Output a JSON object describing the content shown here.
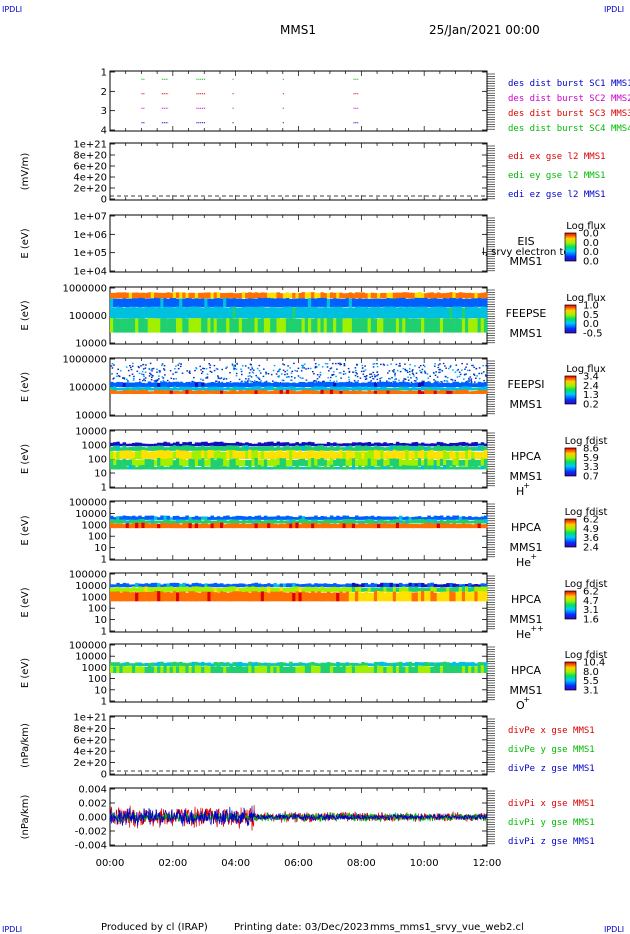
{
  "header": {
    "corner": "IPDLI",
    "spacecraft": "MMS1",
    "date": "25/Jan/2021 00:00"
  },
  "footer": {
    "producer": "Produced by cl (IRAP)",
    "printing_date": "Printing date: 03/Dec/2023",
    "script": "mms_mms1_srvy_vue_web2.cl"
  },
  "colors": {
    "red": "#dd0000",
    "magenta": "#cc00cc",
    "blue": "#0000cc",
    "green": "#00bb00"
  },
  "chart_data": [
    {
      "type": "scatter",
      "panel": "burst",
      "ylim": [
        0.5,
        4.5
      ],
      "yticks": [
        "1",
        "2",
        "3",
        "4"
      ],
      "series": [
        {
          "name": "des dist burst SC1 MMS1",
          "color": "#0000cc",
          "y": 1,
          "x_intervals_hours": [
            [
              1.0,
              1.1
            ],
            [
              1.65,
              1.85
            ],
            [
              2.75,
              3.05
            ],
            [
              3.9,
              3.95
            ],
            [
              5.5,
              5.55
            ],
            [
              7.75,
              7.9
            ]
          ]
        },
        {
          "name": "des dist burst SC2 MMS2",
          "color": "#cc00cc",
          "y": 2,
          "x_intervals_hours": [
            [
              1.0,
              1.1
            ],
            [
              1.65,
              1.85
            ],
            [
              2.75,
              3.05
            ],
            [
              3.9,
              3.95
            ],
            [
              5.5,
              5.55
            ],
            [
              7.75,
              7.9
            ]
          ]
        },
        {
          "name": "des dist burst SC3 MMS3",
          "color": "#dd0000",
          "y": 3,
          "x_intervals_hours": [
            [
              1.0,
              1.1
            ],
            [
              1.65,
              1.85
            ],
            [
              2.75,
              3.05
            ],
            [
              3.9,
              3.95
            ],
            [
              5.5,
              5.55
            ],
            [
              7.75,
              7.9
            ]
          ]
        },
        {
          "name": "des dist burst SC4 MMS4",
          "color": "#00bb00",
          "y": 4,
          "x_intervals_hours": [
            [
              1.0,
              1.1
            ],
            [
              1.65,
              1.85
            ],
            [
              2.75,
              3.05
            ],
            [
              3.9,
              3.95
            ],
            [
              5.5,
              5.55
            ],
            [
              7.75,
              7.9
            ]
          ]
        }
      ]
    },
    {
      "type": "line",
      "panel": "edi",
      "ylabel": "(mV/m)",
      "yticks": [
        "1e+21",
        "8e+20",
        "6e+20",
        "4e+20",
        "2e+20",
        "0"
      ],
      "ylim": [
        0,
        1e+21
      ],
      "series": [
        {
          "name": "edi ex gse l2 MMS1",
          "color": "#dd0000",
          "values": []
        },
        {
          "name": "edi ey gse l2 MMS1",
          "color": "#00bb00",
          "values": []
        },
        {
          "name": "edi ez gse l2 MMS1",
          "color": "#0000cc",
          "values": []
        }
      ]
    },
    {
      "type": "heatmap",
      "panel": "eis",
      "ylabel": "E (eV)",
      "yticks": [
        "1e+07",
        "1e+06",
        "1e+05",
        "1e+04"
      ],
      "scale": "log",
      "labels": [
        "EIS",
        "MMS1"
      ],
      "overlay_text": "l, srvy electron to",
      "colorbar": {
        "title": "Log flux",
        "ticks": [
          "0.0",
          "0.0",
          "0.0",
          "0.0"
        ]
      }
    },
    {
      "type": "heatmap",
      "panel": "feeps_e",
      "ylabel": "E (eV)",
      "yticks": [
        "1000000",
        "100000",
        "10000"
      ],
      "scale": "log",
      "labels": [
        "FEEPSE",
        "MMS1"
      ],
      "colorbar": {
        "title": "Log flux",
        "ticks": [
          "1.0",
          "0.5",
          "0.0",
          "-0.5"
        ]
      }
    },
    {
      "type": "heatmap",
      "panel": "feeps_i",
      "ylabel": "E (eV)",
      "yticks": [
        "1000000",
        "100000",
        "10000"
      ],
      "scale": "log",
      "labels": [
        "FEEPSI",
        "MMS1"
      ],
      "colorbar": {
        "title": "Log flux",
        "ticks": [
          "3.4",
          "2.4",
          "1.3",
          "0.2"
        ]
      }
    },
    {
      "type": "heatmap",
      "panel": "hpca_h",
      "ylabel": "E (eV)",
      "yticks": [
        "10000",
        "1000",
        "100",
        "10",
        "1"
      ],
      "scale": "log",
      "labels": [
        "HPCA",
        "MMS1"
      ],
      "species": "H",
      "charge": "+",
      "colorbar": {
        "title": "Log fdist",
        "ticks": [
          "8.6",
          "5.9",
          "3.3",
          "0.7"
        ]
      }
    },
    {
      "type": "heatmap",
      "panel": "hpca_he",
      "ylabel": "E (eV)",
      "yticks": [
        "100000",
        "10000",
        "1000",
        "100",
        "10",
        "1"
      ],
      "scale": "log",
      "labels": [
        "HPCA",
        "MMS1"
      ],
      "species": "He",
      "charge": "+",
      "colorbar": {
        "title": "Log fdist",
        "ticks": [
          "6.2",
          "4.9",
          "3.6",
          "2.4"
        ]
      }
    },
    {
      "type": "heatmap",
      "panel": "hpca_hepp",
      "ylabel": "E (eV)",
      "yticks": [
        "100000",
        "10000",
        "1000",
        "100",
        "10",
        "1"
      ],
      "scale": "log",
      "labels": [
        "HPCA",
        "MMS1"
      ],
      "species": "He",
      "charge": "++",
      "colorbar": {
        "title": "Log fdist",
        "ticks": [
          "6.2",
          "4.7",
          "3.1",
          "1.6"
        ]
      }
    },
    {
      "type": "heatmap",
      "panel": "hpca_o",
      "ylabel": "E (eV)",
      "yticks": [
        "100000",
        "10000",
        "1000",
        "100",
        "10",
        "1"
      ],
      "scale": "log",
      "labels": [
        "HPCA",
        "MMS1"
      ],
      "species": "O",
      "charge": "+",
      "colorbar": {
        "title": "Log fdist",
        "ticks": [
          "10.4",
          "8.0",
          "5.5",
          "3.1"
        ]
      }
    },
    {
      "type": "line",
      "panel": "divpe",
      "ylabel": "(nPa/km)",
      "yticks": [
        "1e+21",
        "8e+20",
        "6e+20",
        "4e+20",
        "2e+20",
        "0"
      ],
      "ylim": [
        0,
        1e+21
      ],
      "series": [
        {
          "name": "divPe x gse MMS1",
          "color": "#dd0000",
          "values": []
        },
        {
          "name": "divPe y gse MMS1",
          "color": "#00bb00",
          "values": []
        },
        {
          "name": "divPe z gse MMS1",
          "color": "#0000cc",
          "values": []
        }
      ]
    },
    {
      "type": "line",
      "panel": "divpi",
      "ylabel": "(nPa/km)",
      "yticks": [
        "0.004",
        "0.002",
        "0.000",
        "-0.002",
        "-0.004"
      ],
      "ylim": [
        -0.0055,
        0.0055
      ],
      "series": [
        {
          "name": "divPi x gse MMS1",
          "color": "#dd0000",
          "amplitude_by_hour": [
            [
              0,
              0.0025
            ],
            [
              4.5,
              0.0035
            ],
            [
              4.6,
              0.0012
            ],
            [
              8,
              0.001
            ],
            [
              12,
              0.0006
            ]
          ]
        },
        {
          "name": "divPi y gse MMS1",
          "color": "#00bb00",
          "amplitude_by_hour": [
            [
              0,
              0.001
            ],
            [
              12,
              0.0004
            ]
          ]
        },
        {
          "name": "divPi z gse MMS1",
          "color": "#0000cc",
          "amplitude_by_hour": [
            [
              0,
              0.002
            ],
            [
              4.5,
              0.0025
            ],
            [
              4.6,
              0.0008
            ],
            [
              8,
              0.0007
            ],
            [
              12,
              0.0004
            ]
          ]
        }
      ]
    }
  ],
  "x_axis": {
    "ticks": [
      "00:00",
      "02:00",
      "04:00",
      "06:00",
      "08:00",
      "10:00",
      "12:00"
    ],
    "range_hours": [
      0,
      12
    ]
  }
}
